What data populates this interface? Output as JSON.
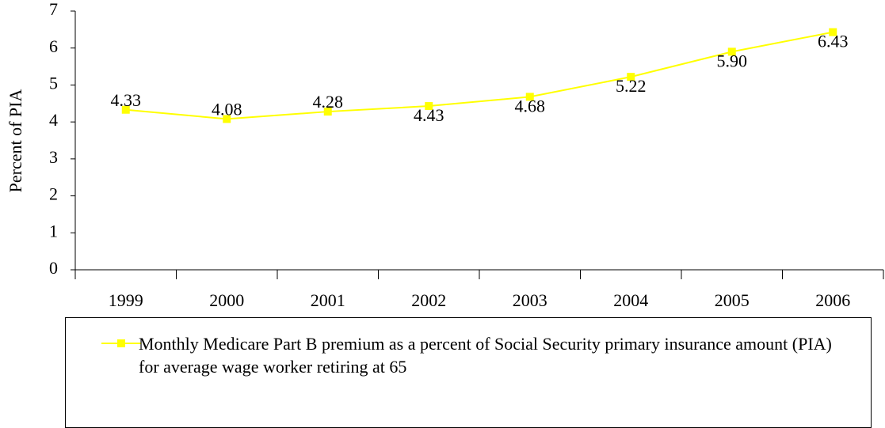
{
  "chart_data": {
    "type": "line",
    "y_label": "Percent of PIA",
    "categories": [
      "1999",
      "2000",
      "2001",
      "2002",
      "2003",
      "2004",
      "2005",
      "2006"
    ],
    "series": [
      {
        "name": "Monthly Medicare Part B premium as a percent of Social Security primary insurance amount (PIA) for average wage worker retiring at 65",
        "color": "#ffff00",
        "values": [
          4.33,
          4.08,
          4.28,
          4.43,
          4.68,
          5.22,
          5.9,
          6.43
        ],
        "value_labels": [
          "4.33",
          "4.08",
          "4.28",
          "4.43",
          "4.68",
          "5.22",
          "5.90",
          "6.43"
        ]
      }
    ],
    "ylim": [
      0,
      7
    ],
    "yticks": [
      0,
      1,
      2,
      3,
      4,
      5,
      6,
      7
    ],
    "legend": "bottom"
  }
}
